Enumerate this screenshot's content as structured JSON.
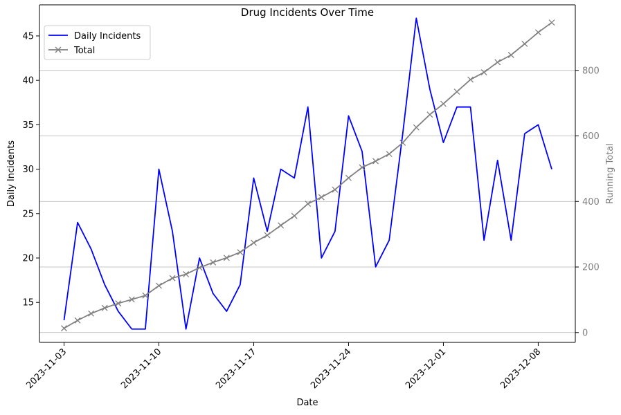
{
  "chart_data": {
    "type": "line",
    "title": "Drug Incidents Over Time",
    "xlabel": "Date",
    "ylabel": "Daily Incidents",
    "y2label": "Running Total",
    "x_ticks": [
      "2023-11-03",
      "2023-11-10",
      "2023-11-17",
      "2023-11-24",
      "2023-12-01",
      "2023-12-08"
    ],
    "x_range": [
      "2023-11-03",
      "2023-12-09"
    ],
    "y_ticks": [
      15,
      20,
      25,
      30,
      35,
      40,
      45
    ],
    "y_range": [
      10.5,
      48.5
    ],
    "y2_ticks": [
      0,
      200,
      400,
      600,
      800
    ],
    "y2_range": [
      -30,
      1000
    ],
    "y2_grid": true,
    "legend_position": "top-left",
    "series": [
      {
        "name": "Daily Incidents",
        "axis": "left",
        "color": "#0000ff",
        "marker": "none",
        "x": [
          "2023-11-03",
          "2023-11-04",
          "2023-11-05",
          "2023-11-06",
          "2023-11-07",
          "2023-11-08",
          "2023-11-09",
          "2023-11-10",
          "2023-11-11",
          "2023-11-12",
          "2023-11-13",
          "2023-11-14",
          "2023-11-15",
          "2023-11-16",
          "2023-11-17",
          "2023-11-18",
          "2023-11-19",
          "2023-11-20",
          "2023-11-21",
          "2023-11-22",
          "2023-11-23",
          "2023-11-24",
          "2023-11-25",
          "2023-11-26",
          "2023-11-27",
          "2023-11-28",
          "2023-11-29",
          "2023-11-30",
          "2023-12-01",
          "2023-12-02",
          "2023-12-03",
          "2023-12-04",
          "2023-12-05",
          "2023-12-06",
          "2023-12-07",
          "2023-12-08",
          "2023-12-09"
        ],
        "values": [
          13,
          24,
          21,
          17,
          14,
          12,
          12,
          30,
          23,
          12,
          20,
          16,
          14,
          17,
          29,
          23,
          30,
          29,
          37,
          20,
          23,
          36,
          32,
          19,
          22,
          34,
          47,
          39,
          33,
          37,
          37,
          22,
          31,
          22,
          34,
          35,
          30
        ]
      },
      {
        "name": "Total",
        "axis": "right",
        "color": "#808080",
        "marker": "x",
        "x": [
          "2023-11-03",
          "2023-11-04",
          "2023-11-05",
          "2023-11-06",
          "2023-11-07",
          "2023-11-08",
          "2023-11-09",
          "2023-11-10",
          "2023-11-11",
          "2023-11-12",
          "2023-11-13",
          "2023-11-14",
          "2023-11-15",
          "2023-11-16",
          "2023-11-17",
          "2023-11-18",
          "2023-11-19",
          "2023-11-20",
          "2023-11-21",
          "2023-11-22",
          "2023-11-23",
          "2023-11-24",
          "2023-11-25",
          "2023-11-26",
          "2023-11-27",
          "2023-11-28",
          "2023-11-29",
          "2023-11-30",
          "2023-12-01",
          "2023-12-02",
          "2023-12-03",
          "2023-12-04",
          "2023-12-05",
          "2023-12-06",
          "2023-12-07",
          "2023-12-08",
          "2023-12-09"
        ],
        "values": [
          13,
          37,
          58,
          75,
          89,
          101,
          113,
          143,
          166,
          178,
          198,
          214,
          228,
          245,
          274,
          297,
          327,
          356,
          393,
          413,
          436,
          472,
          504,
          523,
          545,
          579,
          626,
          665,
          698,
          735,
          772,
          794,
          825,
          847,
          881,
          916,
          946
        ]
      }
    ]
  }
}
